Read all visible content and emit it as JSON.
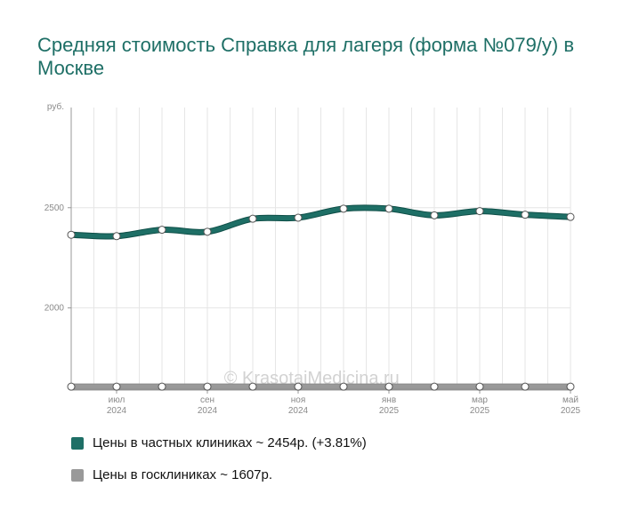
{
  "title": "Средняя стоимость Справка для лагеря (форма №079/у) в Москве",
  "watermark": "© KrasotaiMedicina.ru",
  "chart_data": {
    "type": "line",
    "y_unit_label": "руб.",
    "yticks": [
      2000,
      2500
    ],
    "ylim": [
      1590,
      3000
    ],
    "xlim": [
      0,
      11
    ],
    "x_labels": [
      {
        "x": 1,
        "month": "июл",
        "year": "2024"
      },
      {
        "x": 3,
        "month": "сен",
        "year": "2024"
      },
      {
        "x": 5,
        "month": "ноя",
        "year": "2024"
      },
      {
        "x": 7,
        "month": "янв",
        "year": "2025"
      },
      {
        "x": 9,
        "month": "мар",
        "year": "2025"
      },
      {
        "x": 11,
        "month": "май",
        "year": "2025"
      }
    ],
    "grid": true,
    "legend_position": "bottom",
    "series": [
      {
        "name": "Цены в частных клиниках",
        "color": "#1e6f66",
        "x": [
          0,
          1,
          2,
          3,
          4,
          5,
          6,
          7,
          8,
          9,
          10,
          11
        ],
        "values": [
          2365,
          2358,
          2390,
          2380,
          2445,
          2450,
          2495,
          2495,
          2462,
          2483,
          2465,
          2454
        ]
      },
      {
        "name": "Цены в госклиниках",
        "color": "#999999",
        "x": [
          0,
          1,
          2,
          3,
          4,
          5,
          6,
          7,
          8,
          9,
          10,
          11
        ],
        "values": [
          1607,
          1607,
          1607,
          1607,
          1607,
          1607,
          1607,
          1607,
          1607,
          1607,
          1607,
          1607
        ]
      }
    ]
  },
  "legend": [
    {
      "label": "Цены в частных клиниках ~ 2454р. (+3.81%)",
      "color": "#1e6f66"
    },
    {
      "label": "Цены в госклиниках ~ 1607р.",
      "color": "#999999"
    }
  ]
}
